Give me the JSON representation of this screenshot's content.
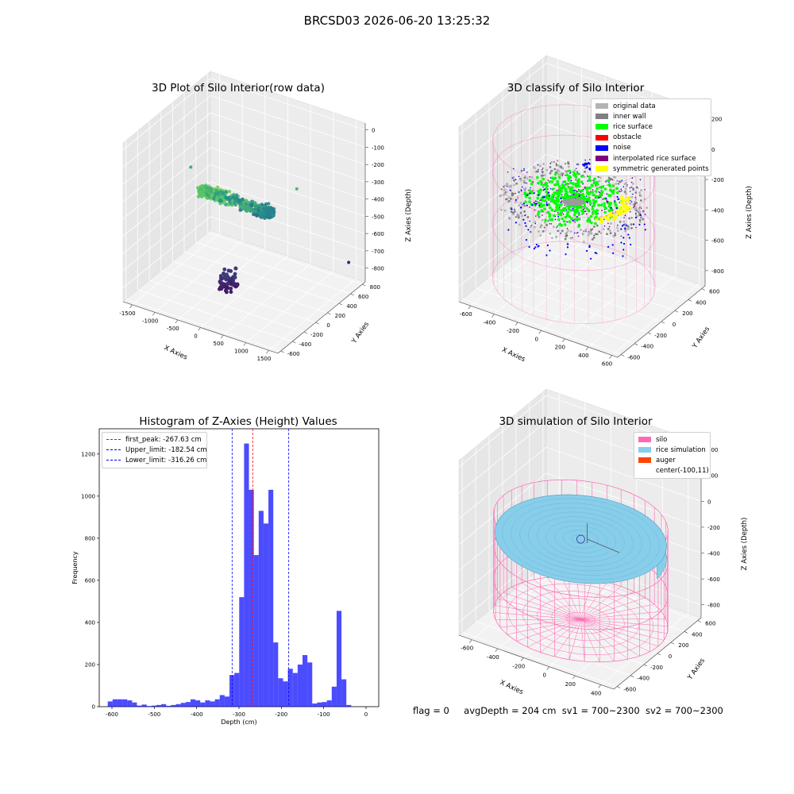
{
  "figure": {
    "suptitle": "BRCSD03 2026-06-20 13:25:32",
    "status": {
      "flag": "flag = 0",
      "avg": "avgDepth = 204 cm",
      "sv1": "sv1 = 700~2300",
      "sv2": "sv2 = 700~2300"
    }
  },
  "chart_data": [
    {
      "type": "scatter",
      "title": "3D Plot of Silo Interior(row data)",
      "xlabel": "X Axies",
      "ylabel": "Y Axies",
      "zlabel": "Z Axies (Depth)",
      "xticks": [
        -1500,
        -1000,
        -500,
        0,
        500,
        1000,
        1500
      ],
      "yticks": [
        -600,
        -400,
        -200,
        0,
        200,
        400,
        600,
        800
      ],
      "zticks": [
        0,
        -100,
        -200,
        -300,
        -400,
        -500,
        -600,
        -700,
        -800
      ],
      "xlim": [
        -1700,
        1700
      ],
      "ylim": [
        -650,
        850
      ],
      "zlim": [
        -880,
        40
      ],
      "colormap": "viridis"
    },
    {
      "type": "scatter",
      "title": "3D classify of Silo Interior",
      "xlabel": "X Axies",
      "ylabel": "Y Axies",
      "zlabel": "Z Axies (Depth)",
      "xticks": [
        -600,
        -400,
        -200,
        0,
        200,
        400,
        600
      ],
      "yticks": [
        -600,
        -400,
        -200,
        0,
        200,
        400,
        600
      ],
      "zticks": [
        200,
        0,
        -200,
        -400,
        -600,
        -800
      ],
      "xlim": [
        -700,
        650
      ],
      "ylim": [
        -650,
        650
      ],
      "zlim": [
        -900,
        250
      ],
      "legend": [
        {
          "label": "original data",
          "color": "#b3b3b3"
        },
        {
          "label": "inner wall",
          "color": "#808080"
        },
        {
          "label": "rice surface",
          "color": "#00ff00"
        },
        {
          "label": "obstacle",
          "color": "#ff0000"
        },
        {
          "label": "noise",
          "color": "#0000ff"
        },
        {
          "label": "interpolated rice surface",
          "color": "#800080"
        },
        {
          "label": "symmetric generated points",
          "color": "#ffff00"
        }
      ]
    },
    {
      "type": "bar",
      "title": "Histogram of Z-Axies (Height) Values",
      "xlabel": "Depth (cm)",
      "ylabel": "Frequency",
      "xlim": [
        -630,
        30
      ],
      "ylim": [
        0,
        1320
      ],
      "xticks": [
        -600,
        -500,
        -400,
        -300,
        -200,
        -100,
        0
      ],
      "yticks": [
        0,
        200,
        400,
        600,
        800,
        1000,
        1200
      ],
      "bin_start": -610,
      "bin_width": 11.5,
      "values": [
        25,
        35,
        35,
        35,
        30,
        20,
        5,
        10,
        3,
        5,
        8,
        12,
        4,
        8,
        12,
        18,
        22,
        35,
        30,
        20,
        30,
        25,
        35,
        55,
        48,
        150,
        160,
        520,
        1250,
        1030,
        720,
        930,
        870,
        1030,
        305,
        135,
        120,
        180,
        160,
        200,
        245,
        210,
        15,
        20,
        22,
        30,
        95,
        455,
        130,
        8
      ],
      "bar_color": "#0000ff",
      "lines": [
        {
          "label": "first_peak: -267.63 cm",
          "value": -267.63,
          "color": "#ff0000"
        },
        {
          "label": "Upper_limit: -182.54 cm",
          "value": -182.54,
          "color": "#0000ff"
        },
        {
          "label": "Lower_limit: -316.26 cm",
          "value": -316.26,
          "color": "#0000ff"
        }
      ]
    },
    {
      "type": "area",
      "title": "3D simulation of Silo Interior",
      "xlabel": "X Axies",
      "ylabel": "Y Axies",
      "zlabel": "Z Axies (Depth)",
      "xticks": [
        -600,
        -400,
        -200,
        0,
        200,
        400
      ],
      "yticks": [
        -600,
        -400,
        -200,
        0,
        200,
        400,
        600
      ],
      "zticks": [
        400,
        200,
        0,
        -200,
        -400,
        -600,
        -800
      ],
      "xlim": [
        -700,
        500
      ],
      "ylim": [
        -650,
        650
      ],
      "zlim": [
        -900,
        450
      ],
      "legend": [
        {
          "label": "silo",
          "color": "#ff69b4"
        },
        {
          "label": "rice simulation",
          "color": "#87ceeb"
        },
        {
          "label": "auger",
          "color": "#ff4500"
        },
        {
          "label": "center(-100,11)",
          "color": "none"
        }
      ]
    }
  ]
}
